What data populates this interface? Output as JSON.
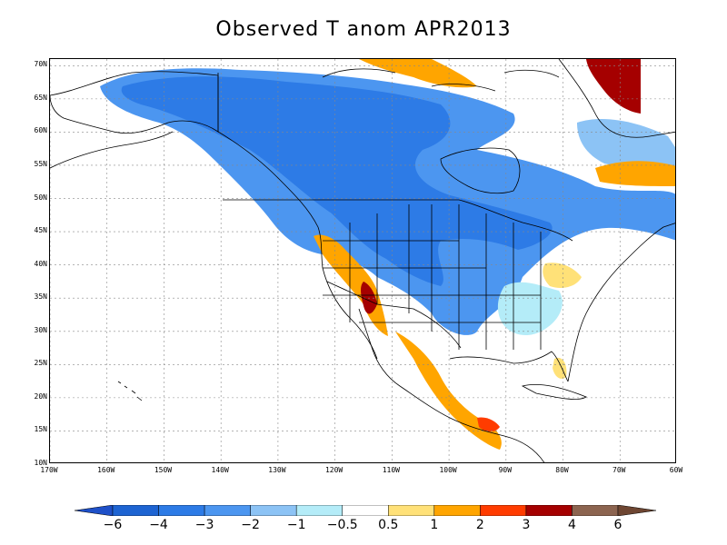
{
  "title": "Observed T anom APR2013",
  "map": {
    "lon_range": [
      -170,
      -60
    ],
    "lat_range": [
      10,
      71
    ],
    "lat_ticks": [
      {
        "value": 70,
        "label": "70N"
      },
      {
        "value": 65,
        "label": "65N"
      },
      {
        "value": 60,
        "label": "60N"
      },
      {
        "value": 55,
        "label": "55N"
      },
      {
        "value": 50,
        "label": "50N"
      },
      {
        "value": 45,
        "label": "45N"
      },
      {
        "value": 40,
        "label": "40N"
      },
      {
        "value": 35,
        "label": "35N"
      },
      {
        "value": 30,
        "label": "30N"
      },
      {
        "value": 25,
        "label": "25N"
      },
      {
        "value": 20,
        "label": "20N"
      },
      {
        "value": 15,
        "label": "15N"
      },
      {
        "value": 10,
        "label": "10N"
      }
    ],
    "lon_ticks": [
      {
        "value": -170,
        "label": "170W"
      },
      {
        "value": -160,
        "label": "160W"
      },
      {
        "value": -150,
        "label": "150W"
      },
      {
        "value": -140,
        "label": "140W"
      },
      {
        "value": -130,
        "label": "130W"
      },
      {
        "value": -120,
        "label": "120W"
      },
      {
        "value": -110,
        "label": "110W"
      },
      {
        "value": -100,
        "label": "100W"
      },
      {
        "value": -90,
        "label": "90W"
      },
      {
        "value": -80,
        "label": "80W"
      },
      {
        "value": -70,
        "label": "70W"
      },
      {
        "value": -60,
        "label": "60W"
      }
    ],
    "grid": "dotted"
  },
  "colorbar": {
    "labels": [
      "−6",
      "−4",
      "−3",
      "−2",
      "−1",
      "−0.5",
      "0.5",
      "1",
      "2",
      "3",
      "4",
      "6"
    ],
    "colors": [
      "#1e64d2",
      "#2d7be6",
      "#4c96f0",
      "#8cc3f5",
      "#b4ecf8",
      "#ffffff",
      "#ffe178",
      "#ffa500",
      "#ff3c00",
      "#a50000",
      "#8c6450"
    ],
    "under_color": "#1e50c8",
    "over_color": "#6e4632"
  }
}
